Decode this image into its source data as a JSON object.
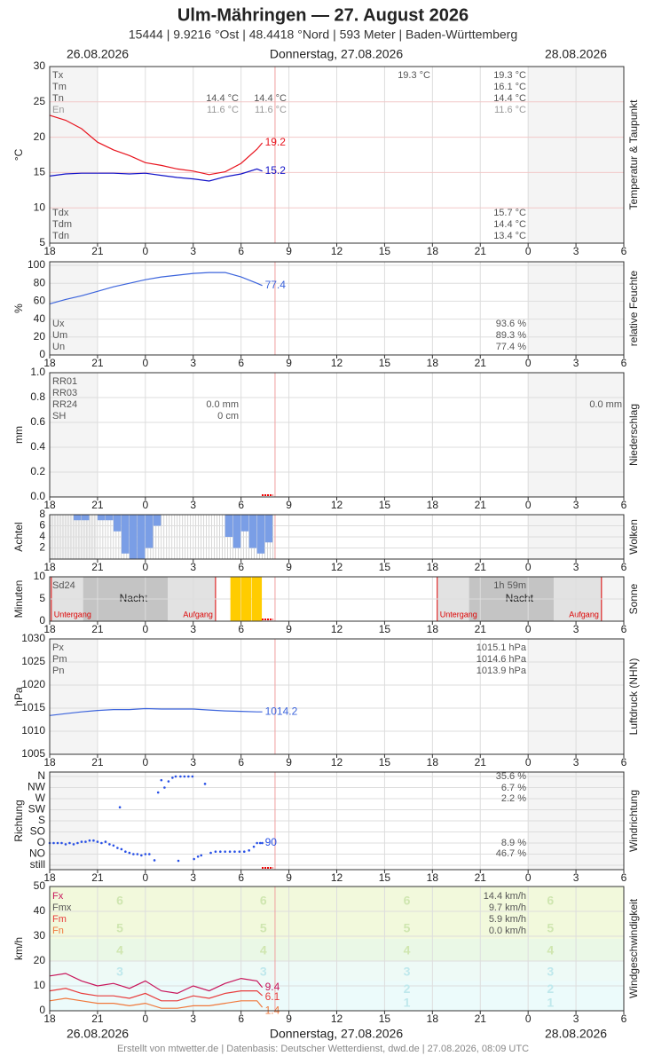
{
  "header": {
    "title": "Ulm-Mähringen  —  27. August 2026",
    "subtitle": "15444  |  9.9216 °Ost  |  48.4418 °Nord  |  593 Meter  |  Baden-Württemberg",
    "date_left": "26.08.2026",
    "date_center": "Donnerstag, 27.08.2026",
    "date_right": "28.08.2026"
  },
  "x_axis": {
    "xlim": [
      0,
      36
    ],
    "xticks": [
      {
        "value": 0,
        "label": "18"
      },
      {
        "value": 3,
        "label": "21"
      },
      {
        "value": 6,
        "label": "0"
      },
      {
        "value": 9,
        "label": "3"
      },
      {
        "value": 12,
        "label": "6"
      },
      {
        "value": 15,
        "label": "9"
      },
      {
        "value": 18,
        "label": "12"
      },
      {
        "value": 21,
        "label": "15"
      },
      {
        "value": 24,
        "label": "18"
      },
      {
        "value": 27,
        "label": "21"
      },
      {
        "value": 30,
        "label": "0"
      },
      {
        "value": 33,
        "label": "3"
      },
      {
        "value": 36,
        "label": "6"
      }
    ]
  },
  "chart_data": [
    {
      "type": "line",
      "ylabel": "°C",
      "side_label": "Temperatur & Taupunkt",
      "ylim": [
        5,
        30
      ],
      "yticks": [
        5,
        10,
        15,
        20,
        25,
        30
      ],
      "end_labels": true,
      "x": [
        0,
        1,
        2,
        3,
        4,
        5,
        6,
        7,
        8,
        9,
        10,
        11,
        12,
        13,
        13.33
      ],
      "series": [
        {
          "color": "#e8141e",
          "values": [
            23.1,
            22.4,
            21.2,
            19.3,
            18.2,
            17.4,
            16.4,
            16.0,
            15.5,
            15.2,
            14.7,
            15.1,
            16.3,
            18.3,
            19.2
          ]
        },
        {
          "color": "#1414c8",
          "values": [
            14.5,
            14.8,
            14.9,
            14.9,
            14.9,
            14.8,
            14.9,
            14.6,
            14.3,
            14.1,
            13.8,
            14.4,
            14.8,
            15.5,
            15.2
          ]
        }
      ],
      "notes": [
        "Tx",
        "Tm",
        "Tn",
        "En",
        "14.4 °C",
        "11.6 °C",
        "14.4 °C",
        "11.6 °C",
        "19.3 °C",
        "19.3 °C",
        "16.1 °C",
        "14.4 °C",
        "11.6 °C",
        "Tdx",
        "Tdm",
        "Tdn",
        "15.7 °C",
        "14.4 °C",
        "13.4 °C"
      ]
    },
    {
      "type": "line",
      "ylabel": "%",
      "side_label": "relative Feuchte",
      "ylim": [
        0,
        100
      ],
      "yticks": [
        0,
        20,
        40,
        60,
        80,
        100
      ],
      "end_labels": true,
      "x": [
        0,
        1,
        2,
        3,
        4,
        5,
        6,
        7,
        8,
        9,
        10,
        11,
        12,
        13,
        13.33
      ],
      "series": [
        {
          "color": "#3c64dc",
          "values": [
            57,
            62,
            66,
            71,
            76,
            80,
            84,
            87,
            89,
            91,
            92,
            92,
            87,
            80,
            77.4
          ]
        }
      ],
      "notes": [
        "Ux",
        "Um",
        "Un",
        "93.6 %",
        "89.3 %",
        "77.4 %"
      ]
    },
    {
      "type": "empty",
      "ylabel": "mm",
      "side_label": "Niederschlag",
      "ylim": [
        0,
        1
      ],
      "yticks": [
        {
          "value": 0,
          "label": "0.0"
        },
        0.2,
        0.4,
        0.6,
        0.8,
        {
          "value": 1,
          "label": "1.0"
        }
      ],
      "notes": [
        "RR01",
        "RR03",
        "RR24",
        "SH",
        "0.0 mm",
        "0 cm",
        "0.0 mm"
      ]
    },
    {
      "type": "histogram",
      "ylabel": "Achtel",
      "side_label": "Wolken",
      "ylim": [
        0,
        8
      ],
      "yticks": [
        2,
        4,
        6,
        8
      ],
      "hang_from_top": true,
      "color": "#7a9ee6",
      "bins": [
        0,
        0.5,
        1,
        1.5,
        2,
        2.5,
        3,
        3.5,
        4,
        4.5,
        5,
        5.5,
        6,
        6.5,
        7,
        7.5,
        8,
        8.5,
        9,
        9.5,
        10,
        10.5,
        11,
        11.5,
        12,
        12.5,
        13,
        13.5,
        14
      ],
      "values": [
        0,
        0,
        0,
        1,
        1,
        0,
        1,
        1,
        3,
        7,
        8,
        8,
        6,
        2,
        0,
        0,
        0,
        0,
        0,
        0,
        0,
        0,
        4,
        6,
        3,
        6,
        7,
        5
      ]
    },
    {
      "type": "histogram",
      "ylabel": "Minuten",
      "side_label": "Sonne",
      "ylim": [
        0,
        10
      ],
      "yticks": [
        0,
        5,
        10
      ],
      "color": "#ffcc00",
      "bins": [
        11.33,
        12,
        12.67,
        13.33
      ],
      "values": [
        10,
        10,
        10
      ],
      "notes": [
        "Sd24",
        "1h 59m"
      ],
      "night_label": "Nacht",
      "sunset_label": "Untergang",
      "sunrise_label": "Aufgang"
    },
    {
      "type": "line",
      "ylabel": "hPa",
      "side_label": "Luftdruck (NHN)",
      "ylim": [
        1005,
        1030
      ],
      "yticks": [
        1005,
        1010,
        1015,
        1020,
        1025,
        1030
      ],
      "end_labels": true,
      "x": [
        0,
        1,
        2,
        3,
        4,
        5,
        6,
        7,
        8,
        9,
        10,
        11,
        12,
        13,
        13.33
      ],
      "series": [
        {
          "color": "#3c64dc",
          "values": [
            1013.4,
            1013.8,
            1014.2,
            1014.5,
            1014.7,
            1014.7,
            1014.9,
            1014.8,
            1014.8,
            1014.8,
            1014.6,
            1014.4,
            1014.3,
            1014.2,
            1014.2
          ]
        }
      ],
      "notes": [
        "Px",
        "Pm",
        "Pn",
        "1015.1 hPa",
        "1014.6 hPa",
        "1013.9 hPa"
      ]
    },
    {
      "type": "scatter",
      "ylabel": "Richtung",
      "side_label": "Windrichtung",
      "ylim": [
        0,
        360
      ],
      "color": "#2850e6",
      "end_labels": true,
      "yticks": [
        {
          "value": 0,
          "label": "still"
        },
        {
          "value": 45,
          "label": "NO"
        },
        {
          "value": 90,
          "label": "O"
        },
        {
          "value": 135,
          "label": "SO"
        },
        {
          "value": 180,
          "label": "S"
        },
        {
          "value": 225,
          "label": "SW"
        },
        {
          "value": 270,
          "label": "W"
        },
        {
          "value": 315,
          "label": "NW"
        },
        {
          "value": 360,
          "label": "N"
        }
      ],
      "x": [
        0,
        0.25,
        0.5,
        0.75,
        1,
        1.25,
        1.5,
        1.75,
        2,
        2.25,
        2.5,
        2.75,
        3,
        3.25,
        3.5,
        3.75,
        4,
        4.25,
        4.4,
        4.5,
        4.75,
        5,
        5.25,
        5.5,
        5.75,
        6,
        6.25,
        6.57,
        6.8,
        7.0,
        7.2,
        7.45,
        7.7,
        7.9,
        8.07,
        8.2,
        8.45,
        8.7,
        8.95,
        9.05,
        9.3,
        9.5,
        9.74,
        10.1,
        10.4,
        10.7,
        11,
        11.3,
        11.6,
        11.9,
        12.2,
        12.5,
        12.8,
        13,
        13.2,
        13.33
      ],
      "values": [
        90,
        90,
        90,
        90,
        85,
        90,
        85,
        90,
        95,
        95,
        100,
        100,
        95,
        90,
        95,
        85,
        80,
        70,
        235,
        65,
        55,
        50,
        45,
        45,
        40,
        45,
        45,
        20,
        295,
        345,
        315,
        340,
        355,
        360,
        18,
        360,
        360,
        360,
        360,
        25,
        35,
        40,
        330,
        50,
        55,
        55,
        55,
        55,
        55,
        55,
        55,
        60,
        75,
        90,
        90,
        90
      ],
      "notes": [
        "35.6 %",
        "6.7 %",
        "2.2 %",
        "8.9 %",
        "46.7 %"
      ]
    },
    {
      "type": "line",
      "ylabel": "km/h",
      "side_label": "Windgeschwindigkeit",
      "ylim": [
        0,
        50
      ],
      "yticks": [
        0,
        10,
        20,
        30,
        40,
        50
      ],
      "end_labels": true,
      "x": [
        0,
        1,
        2,
        3,
        4,
        5,
        6,
        7,
        8,
        9,
        10,
        11,
        12,
        13,
        13.33
      ],
      "series": [
        {
          "name": "Fx",
          "color": "#c8145a",
          "values": [
            14,
            15,
            12,
            10,
            11,
            9,
            12,
            8,
            7,
            10,
            8,
            11,
            13,
            12,
            9.4
          ]
        },
        {
          "name": "Fm",
          "color": "#e83c3c",
          "values": [
            8,
            9,
            7,
            6,
            6,
            5,
            7,
            4,
            4,
            6,
            5,
            7,
            8,
            8,
            6.1
          ]
        },
        {
          "name": "Fn",
          "color": "#f0783c",
          "values": [
            4,
            5,
            4,
            3,
            3,
            2,
            3,
            1,
            1,
            2,
            2,
            3,
            4,
            4,
            1.4
          ]
        }
      ],
      "legend_extra": "Fmx",
      "beaufort_labels": [
        "1",
        "2",
        "3",
        "4",
        "5",
        "6"
      ],
      "notes": [
        "14.4 km/h",
        "9.7 km/h",
        "5.9 km/h",
        "0.0 km/h"
      ]
    }
  ],
  "footer": "Erstellt von mtwetter.de | Datenbasis: Deutscher Wetterdienst, dwd.de | 27.08.2026, 08:09 UTC"
}
